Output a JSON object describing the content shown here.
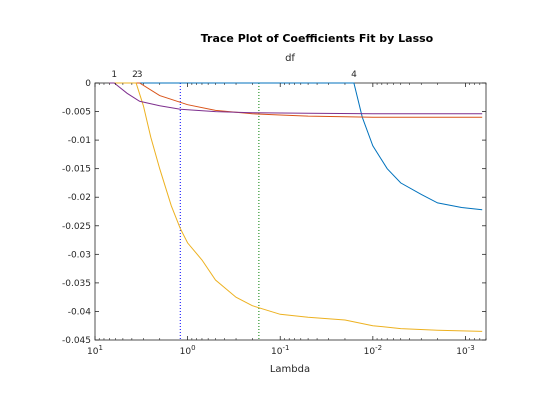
{
  "chart_data": {
    "type": "line",
    "title": "Trace Plot of Coefficients Fit by Lasso",
    "top_label": "df",
    "xlabel": "Lambda",
    "ylabel": "",
    "x_scale": "log",
    "x_reversed": true,
    "xlim": [
      10,
      0.0006
    ],
    "ylim": [
      -0.045,
      0
    ],
    "x_ticks": [
      {
        "value": 10,
        "base": "10",
        "exp": "1"
      },
      {
        "value": 1,
        "base": "10",
        "exp": "0"
      },
      {
        "value": 0.1,
        "base": "10",
        "exp": "-1"
      },
      {
        "value": 0.01,
        "base": "10",
        "exp": "-2"
      },
      {
        "value": 0.001,
        "base": "10",
        "exp": "-3"
      }
    ],
    "y_ticks": [
      {
        "value": 0,
        "label": "0"
      },
      {
        "value": -0.005,
        "label": "-0.005"
      },
      {
        "value": -0.01,
        "label": "-0.01"
      },
      {
        "value": -0.015,
        "label": "-0.015"
      },
      {
        "value": -0.02,
        "label": "-0.02"
      },
      {
        "value": -0.025,
        "label": "-0.025"
      },
      {
        "value": -0.03,
        "label": "-0.03"
      },
      {
        "value": -0.035,
        "label": "-0.035"
      },
      {
        "value": -0.04,
        "label": "-0.04"
      },
      {
        "value": -0.045,
        "label": "-0.045"
      }
    ],
    "df_labels": [
      {
        "x": 6.2,
        "label": "1"
      },
      {
        "x": 3.7,
        "label": "2"
      },
      {
        "x": 3.3,
        "label": "3"
      },
      {
        "x": 0.016,
        "label": "4"
      }
    ],
    "vlines": [
      {
        "x": 1.2,
        "color": "#0000ff"
      },
      {
        "x": 0.17,
        "color": "#008000"
      }
    ],
    "series": [
      {
        "color": "#0072bd",
        "points": [
          [
            7.0,
            0
          ],
          [
            0.016,
            0
          ],
          [
            0.013,
            -0.006
          ],
          [
            0.01,
            -0.011
          ],
          [
            0.007,
            -0.015
          ],
          [
            0.005,
            -0.0175
          ],
          [
            0.003,
            -0.0195
          ],
          [
            0.002,
            -0.021
          ],
          [
            0.0011,
            -0.0218
          ],
          [
            0.00066,
            -0.0222
          ]
        ]
      },
      {
        "color": "#d95319",
        "points": [
          [
            7.0,
            0
          ],
          [
            3.3,
            0
          ],
          [
            2.0,
            -0.0022
          ],
          [
            1.0,
            -0.0038
          ],
          [
            0.5,
            -0.0048
          ],
          [
            0.2,
            -0.0054
          ],
          [
            0.1,
            -0.0056
          ],
          [
            0.05,
            -0.0058
          ],
          [
            0.02,
            -0.0059
          ],
          [
            0.01,
            -0.006
          ],
          [
            0.003,
            -0.006
          ],
          [
            0.00066,
            -0.006
          ]
        ]
      },
      {
        "color": "#edb120",
        "points": [
          [
            7.0,
            0
          ],
          [
            3.6,
            0
          ],
          [
            3.0,
            -0.004
          ],
          [
            2.5,
            -0.0095
          ],
          [
            2.0,
            -0.015
          ],
          [
            1.5,
            -0.0215
          ],
          [
            1.2,
            -0.0255
          ],
          [
            1.0,
            -0.028
          ],
          [
            0.7,
            -0.031
          ],
          [
            0.5,
            -0.0345
          ],
          [
            0.3,
            -0.0375
          ],
          [
            0.2,
            -0.039
          ],
          [
            0.1,
            -0.0405
          ],
          [
            0.05,
            -0.041
          ],
          [
            0.02,
            -0.0415
          ],
          [
            0.01,
            -0.0425
          ],
          [
            0.005,
            -0.043
          ],
          [
            0.002,
            -0.0433
          ],
          [
            0.00066,
            -0.0435
          ]
        ]
      },
      {
        "color": "#7e2f8e",
        "points": [
          [
            7.0,
            0
          ],
          [
            6.2,
            0
          ],
          [
            4.5,
            -0.0018
          ],
          [
            3.3,
            -0.0032
          ],
          [
            2.0,
            -0.004
          ],
          [
            1.2,
            -0.0046
          ],
          [
            0.5,
            -0.005
          ],
          [
            0.2,
            -0.0052
          ],
          [
            0.05,
            -0.0053
          ],
          [
            0.01,
            -0.0054
          ],
          [
            0.003,
            -0.0054
          ],
          [
            0.00066,
            -0.0054
          ]
        ]
      }
    ]
  }
}
